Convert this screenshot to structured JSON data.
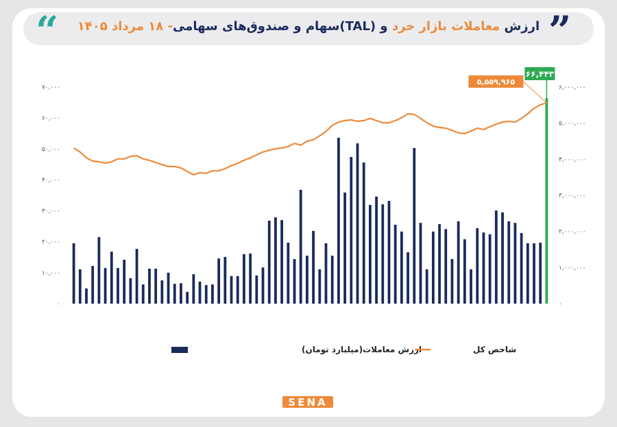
{
  "chart_data": {
    "type": "bar-line",
    "title_segments": [
      {
        "text": "ارزش",
        "color": "#1b2a5c"
      },
      {
        "text": " معاملات بازار خرد ",
        "color": "#ee8a3a"
      },
      {
        "text": "و (TAL)سهام و صندوق‌های سهامی",
        "color": "#1b2a5c"
      },
      {
        "text": "- ۱۸ مرداد ۱۴۰۵",
        "color": "#ee8a3a"
      }
    ],
    "categories": [
      null,
      null,
      null,
      null,
      null,
      null,
      null,
      null,
      null,
      null,
      null,
      null,
      null,
      null,
      null,
      null,
      null,
      null,
      null,
      null,
      null,
      null,
      null,
      null,
      null,
      null,
      null,
      null,
      null,
      null,
      null,
      null,
      null,
      null,
      null,
      null,
      null,
      null,
      null,
      null,
      null,
      null,
      null,
      null,
      null,
      null,
      null,
      null,
      null,
      null,
      null,
      null,
      null,
      null,
      null,
      null,
      null,
      null,
      null,
      null,
      null,
      null,
      null,
      null,
      null,
      null,
      null,
      null,
      null,
      null,
      null,
      null,
      null,
      null,
      null,
      null
    ],
    "series": [
      {
        "name": "ارزش معاملات(میلیارد تومان)",
        "kind": "bar",
        "axis": "y",
        "color": "#1b2a5c",
        "colors": [
          "#1b2a5c",
          "#1b2a5c",
          "#1b2a5c",
          "#1b2a5c",
          "#1b2a5c",
          "#1b2a5c",
          "#1b2a5c",
          "#1b2a5c",
          "#1b2a5c",
          "#1b2a5c",
          "#1b2a5c",
          "#1b2a5c",
          "#1b2a5c",
          "#1b2a5c",
          "#1b2a5c",
          "#1b2a5c",
          "#1b2a5c",
          "#1b2a5c",
          "#1b2a5c",
          "#1b2a5c",
          "#1b2a5c",
          "#1b2a5c",
          "#1b2a5c",
          "#1b2a5c",
          "#1b2a5c",
          "#1b2a5c",
          "#1b2a5c",
          "#1b2a5c",
          "#1b2a5c",
          "#1b2a5c",
          "#1b2a5c",
          "#1b2a5c",
          "#1b2a5c",
          "#1b2a5c",
          "#1b2a5c",
          "#1b2a5c",
          "#1b2a5c",
          "#1b2a5c",
          "#1b2a5c",
          "#1b2a5c",
          "#1b2a5c",
          "#1b2a5c",
          "#1b2a5c",
          "#1b2a5c",
          "#1b2a5c",
          "#1b2a5c",
          "#1b2a5c",
          "#1b2a5c",
          "#1b2a5c",
          "#1b2a5c",
          "#1b2a5c",
          "#1b2a5c",
          "#1b2a5c",
          "#1b2a5c",
          "#1b2a5c",
          "#1b2a5c",
          "#1b2a5c",
          "#1b2a5c",
          "#1b2a5c",
          "#1b2a5c",
          "#1b2a5c",
          "#1b2a5c",
          "#1b2a5c",
          "#1b2a5c",
          "#1b2a5c",
          "#1b2a5c",
          "#1b2a5c",
          "#1b2a5c",
          "#1b2a5c",
          "#1b2a5c",
          "#1b2a5c",
          "#1b2a5c",
          "#1b2a5c",
          "#1b2a5c",
          "#1b2a5c",
          "#2eaa55"
        ],
        "values": [
          19500,
          11100,
          4900,
          12200,
          21500,
          11500,
          16800,
          11500,
          14200,
          8200,
          17700,
          6200,
          11300,
          11300,
          7500,
          10000,
          6400,
          6600,
          3800,
          9500,
          7100,
          6000,
          6200,
          14600,
          15100,
          8900,
          8900,
          16000,
          16200,
          9100,
          11700,
          26800,
          27900,
          27000,
          19700,
          14400,
          36800,
          15500,
          23500,
          11100,
          19500,
          15500,
          53600,
          35900,
          47400,
          51800,
          45600,
          31900,
          34600,
          32100,
          33200,
          25500,
          23300,
          16600,
          50300,
          26100,
          11100,
          23300,
          25700,
          24100,
          14400,
          26600,
          20800,
          11100,
          24400,
          23000,
          22400,
          30100,
          29500,
          26600,
          26100,
          22800,
          19500,
          19500,
          19700,
          66443
        ],
        "value_labels": [
          null,
          null,
          null,
          null,
          null,
          null,
          null,
          null,
          null,
          null,
          null,
          null,
          null,
          null,
          null,
          null,
          null,
          null,
          null,
          null,
          null,
          null,
          null,
          null,
          null,
          null,
          null,
          null,
          null,
          null,
          null,
          null,
          null,
          null,
          null,
          null,
          null,
          null,
          null,
          null,
          null,
          null,
          null,
          null,
          null,
          null,
          null,
          null,
          null,
          null,
          null,
          null,
          null,
          null,
          null,
          null,
          null,
          null,
          null,
          null,
          null,
          null,
          null,
          null,
          null,
          null,
          null,
          null,
          null,
          null,
          null,
          null,
          null,
          null,
          null,
          "۶۶,۴۴۳"
        ]
      },
      {
        "name": "شاخص کل",
        "kind": "line",
        "axis": "y2",
        "color": "#ee8a3a",
        "values": [
          4310000,
          4200000,
          4040000,
          3950000,
          3930000,
          3890000,
          3930000,
          4010000,
          4010000,
          4080000,
          4100000,
          4010000,
          3970000,
          3910000,
          3850000,
          3800000,
          3800000,
          3760000,
          3660000,
          3570000,
          3630000,
          3610000,
          3680000,
          3680000,
          3740000,
          3820000,
          3890000,
          3970000,
          4040000,
          4120000,
          4200000,
          4250000,
          4290000,
          4310000,
          4350000,
          4440000,
          4390000,
          4500000,
          4540000,
          4650000,
          4770000,
          4940000,
          5030000,
          5070000,
          5090000,
          5050000,
          5070000,
          5130000,
          5070000,
          5010000,
          5010000,
          5070000,
          5150000,
          5260000,
          5240000,
          5130000,
          5010000,
          4920000,
          4880000,
          4860000,
          4800000,
          4730000,
          4710000,
          4780000,
          4860000,
          4820000,
          4900000,
          4970000,
          5030000,
          5050000,
          5030000,
          5130000,
          5260000,
          5410000,
          5510000,
          5559965
        ],
        "value_labels": [
          null,
          null,
          null,
          null,
          null,
          null,
          null,
          null,
          null,
          null,
          null,
          null,
          null,
          null,
          null,
          null,
          null,
          null,
          null,
          null,
          null,
          null,
          null,
          null,
          null,
          null,
          null,
          null,
          null,
          null,
          null,
          null,
          null,
          null,
          null,
          null,
          null,
          null,
          null,
          null,
          null,
          null,
          null,
          null,
          null,
          null,
          null,
          null,
          null,
          null,
          null,
          null,
          null,
          null,
          null,
          null,
          null,
          null,
          null,
          null,
          null,
          null,
          null,
          null,
          null,
          null,
          null,
          null,
          null,
          null,
          null,
          null,
          null,
          null,
          null,
          "۵,۵۵۹,۹۶۵"
        ]
      }
    ],
    "ylim": [
      0,
      70000
    ],
    "yticks": [
      {
        "value": 0,
        "label": "۰"
      },
      {
        "value": 10000,
        "label": "۱۰,۰۰۰"
      },
      {
        "value": 20000,
        "label": "۲۰,۰۰۰"
      },
      {
        "value": 30000,
        "label": "۳۰,۰۰۰"
      },
      {
        "value": 40000,
        "label": "۴۰,۰۰۰"
      },
      {
        "value": 50000,
        "label": "۵۰,۰۰۰"
      },
      {
        "value": 60000,
        "label": "۶۰,۰۰۰"
      },
      {
        "value": 70000,
        "label": "۷۰,۰۰۰"
      }
    ],
    "y2lim": [
      0,
      6000000
    ],
    "y2ticks": [
      {
        "value": 0,
        "label": "۰"
      },
      {
        "value": 1000000,
        "label": "۱,۰۰۰,۰۰۰"
      },
      {
        "value": 2000000,
        "label": "۲,۰۰۰,۰۰۰"
      },
      {
        "value": 3000000,
        "label": "۳,۰۰۰,۰۰۰"
      },
      {
        "value": 4000000,
        "label": "۴,۰۰۰,۰۰۰"
      },
      {
        "value": 5000000,
        "label": "۵,۰۰۰,۰۰۰"
      },
      {
        "value": 6000000,
        "label": "۶,۰۰۰,۰۰۰"
      }
    ],
    "grid": false,
    "logo": "SENA"
  }
}
